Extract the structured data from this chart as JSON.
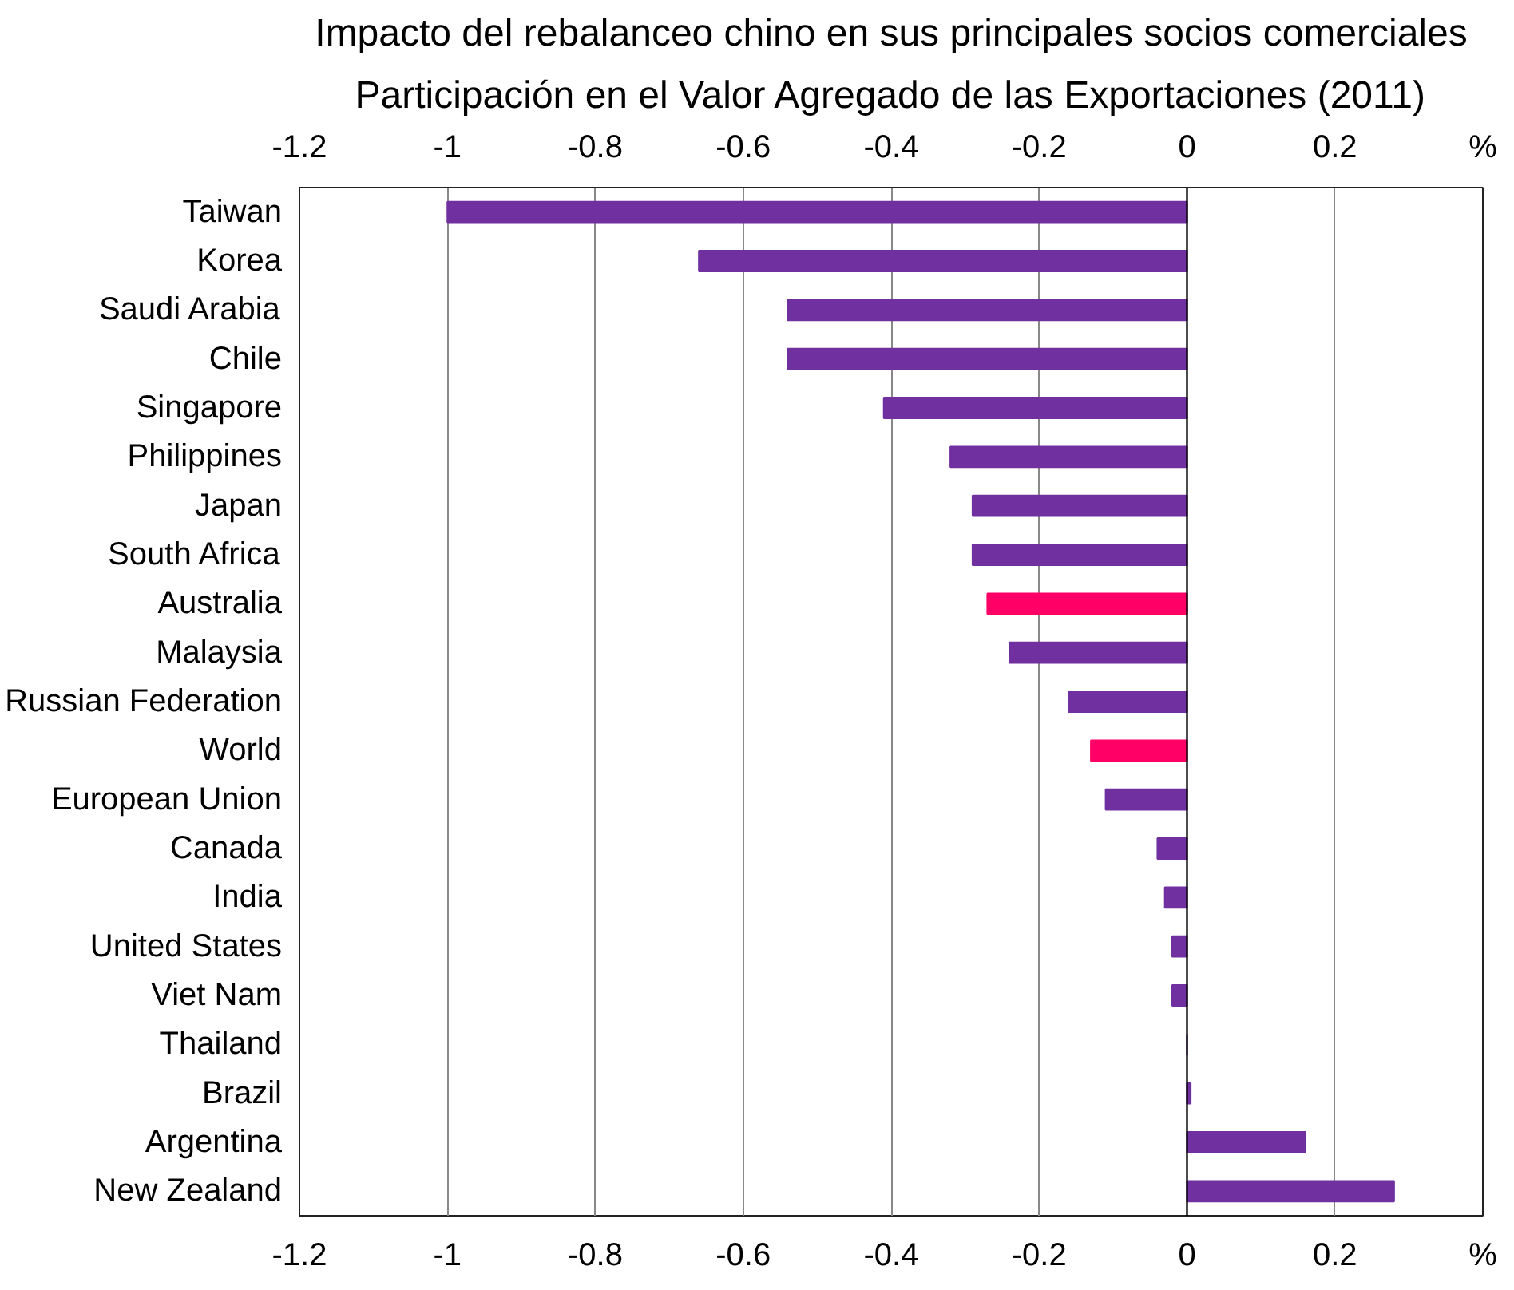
{
  "chart_data": {
    "type": "bar",
    "orientation": "horizontal",
    "title": "Impacto del rebalanceo chino en sus principales socios comerciales",
    "subtitle": "Participación en el Valor Agregado de las Exportaciones (2011)",
    "categories": [
      "Taiwan",
      "Korea",
      "Saudi Arabia",
      "Chile",
      "Singapore",
      "Philippines",
      "Japan",
      "South Africa",
      "Australia",
      "Malaysia",
      "Russian Federation",
      "World",
      "European Union",
      "Canada",
      "India",
      "United States",
      "Viet Nam",
      "Thailand",
      "Brazil",
      "Argentina",
      "New Zealand"
    ],
    "values": [
      -1.0,
      -0.66,
      -0.54,
      -0.54,
      -0.41,
      -0.32,
      -0.29,
      -0.29,
      -0.27,
      -0.24,
      -0.16,
      -0.13,
      -0.11,
      -0.04,
      -0.03,
      -0.02,
      -0.02,
      0,
      0.005,
      0.16,
      0.28
    ],
    "colors": [
      "#7030a0",
      "#7030a0",
      "#7030a0",
      "#7030a0",
      "#7030a0",
      "#7030a0",
      "#7030a0",
      "#7030a0",
      "#ff0066",
      "#7030a0",
      "#7030a0",
      "#ff0066",
      "#7030a0",
      "#7030a0",
      "#7030a0",
      "#7030a0",
      "#7030a0",
      "#7030a0",
      "#7030a0",
      "#7030a0",
      "#7030a0"
    ],
    "xlim": [
      -1.2,
      0.4
    ],
    "xticks": [
      -1.2,
      -1,
      -0.8,
      -0.6,
      -0.4,
      -0.2,
      0,
      0.2,
      {
        "value": 0.4,
        "label": "%"
      }
    ],
    "x2lim": [
      -1.2,
      0.4
    ],
    "x2ticks": [
      -1.2,
      -1,
      -0.8,
      -0.6,
      -0.4,
      -0.2,
      0,
      0.2,
      {
        "value": 0.4,
        "label": "%"
      }
    ],
    "grid": "x"
  }
}
